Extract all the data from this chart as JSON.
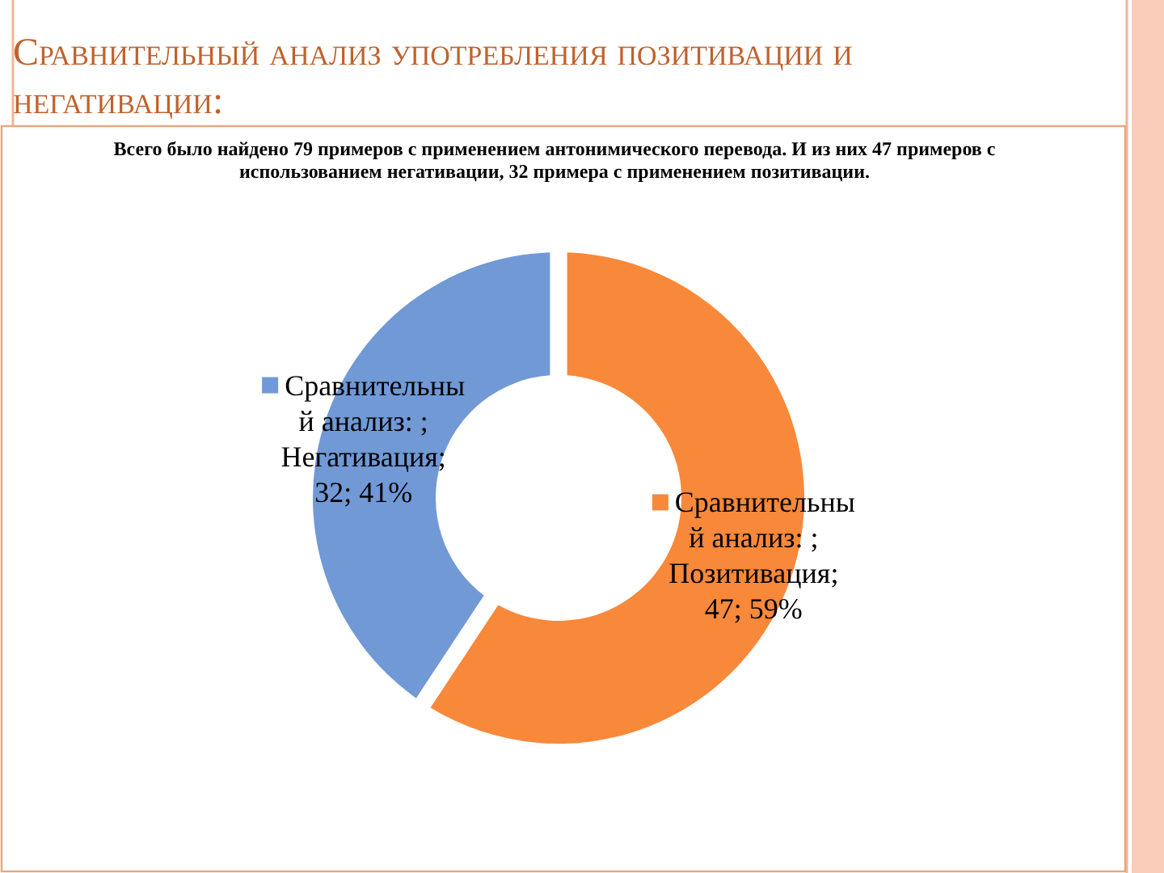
{
  "chart_data": {
    "type": "donut",
    "title": "Сравнительный анализ употребления позитивации и негативации:",
    "subtitle": "Всего было найдено 79 примеров с применением антонимического перевода. И из них 47 примеров с использованием негативации, 32 примера с применением позитивации.",
    "categories": [
      "Позитивация",
      "Негативация"
    ],
    "colors": [
      "#f8883a",
      "#7099d6"
    ],
    "series": [
      {
        "name": "Сравнительный анализ: ;",
        "values": [
          47,
          32
        ],
        "value_labels": [
          "; 47; 59%",
          "; 32; 41%"
        ]
      }
    ]
  }
}
